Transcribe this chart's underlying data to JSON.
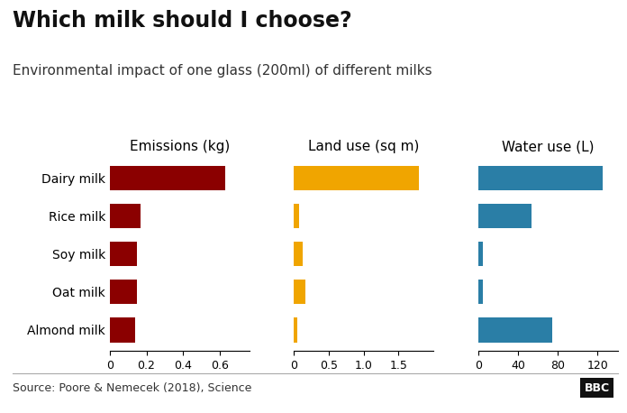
{
  "title": "Which milk should I choose?",
  "subtitle": "Environmental impact of one glass (200ml) of different milks",
  "source": "Source: Poore & Nemecek (2018), Science",
  "categories": [
    "Dairy milk",
    "Rice milk",
    "Soy milk",
    "Oat milk",
    "Almond milk"
  ],
  "emissions": [
    0.63,
    0.17,
    0.15,
    0.15,
    0.14
  ],
  "land_use": [
    1.79,
    0.07,
    0.13,
    0.16,
    0.05
  ],
  "water_use": [
    125,
    54,
    5,
    5,
    74
  ],
  "emissions_color": "#8B0000",
  "land_use_color": "#F0A500",
  "water_use_color": "#2A7EA6",
  "emissions_label": "Emissions (kg)",
  "land_use_label": "Land use (sq m)",
  "water_use_label": "Water use (L)",
  "emissions_xlim": [
    0,
    0.76
  ],
  "land_use_xlim": [
    0,
    2.0
  ],
  "water_use_xlim": [
    0,
    140
  ],
  "emissions_xticks": [
    0,
    0.2,
    0.4,
    0.6
  ],
  "land_use_xticks": [
    0,
    0.5,
    1.0,
    1.5
  ],
  "water_use_xticks": [
    0,
    40,
    80,
    120
  ],
  "bg_color": "#ffffff",
  "title_fontsize": 17,
  "subtitle_fontsize": 11,
  "col_label_fontsize": 11,
  "cat_fontsize": 10,
  "tick_fontsize": 9,
  "source_fontsize": 9,
  "bar_height": 0.65
}
